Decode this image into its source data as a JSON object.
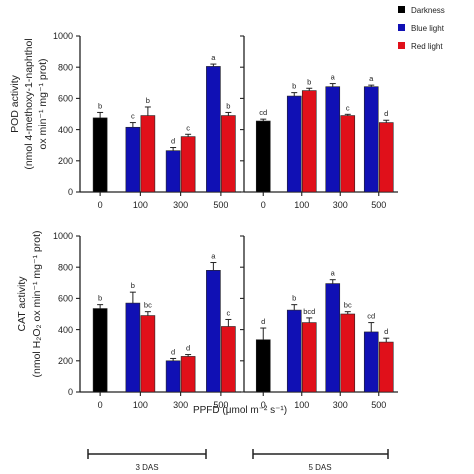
{
  "legend": [
    {
      "label": "Darkness",
      "color": "#000000"
    },
    {
      "label": "Blue light",
      "color": "#1010b4"
    },
    {
      "label": "Red light",
      "color": "#e0101a"
    }
  ],
  "xlabel": "PPFD (μmol m⁻² s⁻¹)",
  "das_labels": [
    "3 DAS",
    "5 DAS"
  ],
  "chart_data": [
    {
      "type": "bar",
      "panel": "top-left",
      "ylabel_lines": [
        "POD activity",
        "(nmol 4-methoxy-1-naphthol",
        "ox min⁻¹ mg⁻¹ prot)"
      ],
      "ylim": [
        0,
        1000
      ],
      "yticks": [
        0,
        200,
        400,
        600,
        800,
        1000
      ],
      "categories": [
        "0",
        "100",
        "300",
        "500"
      ],
      "bars": [
        {
          "cat": "0",
          "series": "Darkness",
          "value": 475,
          "error": 35,
          "label": "b"
        },
        {
          "cat": "100",
          "series": "Blue light",
          "value": 415,
          "error": 30,
          "label": "c"
        },
        {
          "cat": "100",
          "series": "Red light",
          "value": 490,
          "error": 55,
          "label": "b"
        },
        {
          "cat": "300",
          "series": "Blue light",
          "value": 265,
          "error": 20,
          "label": "d"
        },
        {
          "cat": "300",
          "series": "Red light",
          "value": 355,
          "error": 15,
          "label": "c"
        },
        {
          "cat": "500",
          "series": "Blue light",
          "value": 805,
          "error": 15,
          "label": "a"
        },
        {
          "cat": "500",
          "series": "Red light",
          "value": 490,
          "error": 20,
          "label": "b"
        }
      ]
    },
    {
      "type": "bar",
      "panel": "top-right",
      "ylim": [
        0,
        1000
      ],
      "yticks": [
        0,
        200,
        400,
        600,
        800,
        1000
      ],
      "categories": [
        "0",
        "100",
        "300",
        "500"
      ],
      "bars": [
        {
          "cat": "0",
          "series": "Darkness",
          "value": 455,
          "error": 12,
          "label": "cd"
        },
        {
          "cat": "100",
          "series": "Blue light",
          "value": 615,
          "error": 22,
          "label": "b"
        },
        {
          "cat": "100",
          "series": "Red light",
          "value": 650,
          "error": 15,
          "label": "b"
        },
        {
          "cat": "300",
          "series": "Blue light",
          "value": 675,
          "error": 20,
          "label": "a"
        },
        {
          "cat": "300",
          "series": "Red light",
          "value": 490,
          "error": 8,
          "label": "c"
        },
        {
          "cat": "500",
          "series": "Blue light",
          "value": 675,
          "error": 10,
          "label": "a"
        },
        {
          "cat": "500",
          "series": "Red light",
          "value": 445,
          "error": 15,
          "label": "d"
        }
      ]
    },
    {
      "type": "bar",
      "panel": "bottom-left",
      "ylabel_lines": [
        "CAT activity",
        "(nmol H₂O₂ ox min⁻¹ mg⁻¹ prot)"
      ],
      "ylim": [
        0,
        1000
      ],
      "yticks": [
        0,
        200,
        400,
        600,
        800,
        1000
      ],
      "categories": [
        "0",
        "100",
        "300",
        "500"
      ],
      "bars": [
        {
          "cat": "0",
          "series": "Darkness",
          "value": 535,
          "error": 25,
          "label": "b"
        },
        {
          "cat": "100",
          "series": "Blue light",
          "value": 570,
          "error": 70,
          "label": "b"
        },
        {
          "cat": "100",
          "series": "Red light",
          "value": 490,
          "error": 25,
          "label": "bc"
        },
        {
          "cat": "300",
          "series": "Blue light",
          "value": 200,
          "error": 15,
          "label": "d"
        },
        {
          "cat": "300",
          "series": "Red light",
          "value": 228,
          "error": 12,
          "label": "d"
        },
        {
          "cat": "500",
          "series": "Blue light",
          "value": 780,
          "error": 50,
          "label": "a"
        },
        {
          "cat": "500",
          "series": "Red light",
          "value": 420,
          "error": 45,
          "label": "c"
        }
      ]
    },
    {
      "type": "bar",
      "panel": "bottom-right",
      "ylim": [
        0,
        1000
      ],
      "yticks": [
        0,
        200,
        400,
        600,
        800,
        1000
      ],
      "categories": [
        "0",
        "100",
        "300",
        "500"
      ],
      "bars": [
        {
          "cat": "0",
          "series": "Darkness",
          "value": 335,
          "error": 75,
          "label": "d"
        },
        {
          "cat": "100",
          "series": "Blue light",
          "value": 525,
          "error": 35,
          "label": "b"
        },
        {
          "cat": "100",
          "series": "Red light",
          "value": 445,
          "error": 30,
          "label": "bcd"
        },
        {
          "cat": "300",
          "series": "Blue light",
          "value": 695,
          "error": 25,
          "label": "a"
        },
        {
          "cat": "300",
          "series": "Red light",
          "value": 500,
          "error": 15,
          "label": "bc"
        },
        {
          "cat": "500",
          "series": "Blue light",
          "value": 385,
          "error": 60,
          "label": "cd"
        },
        {
          "cat": "500",
          "series": "Red light",
          "value": 320,
          "error": 25,
          "label": "d"
        }
      ]
    }
  ]
}
